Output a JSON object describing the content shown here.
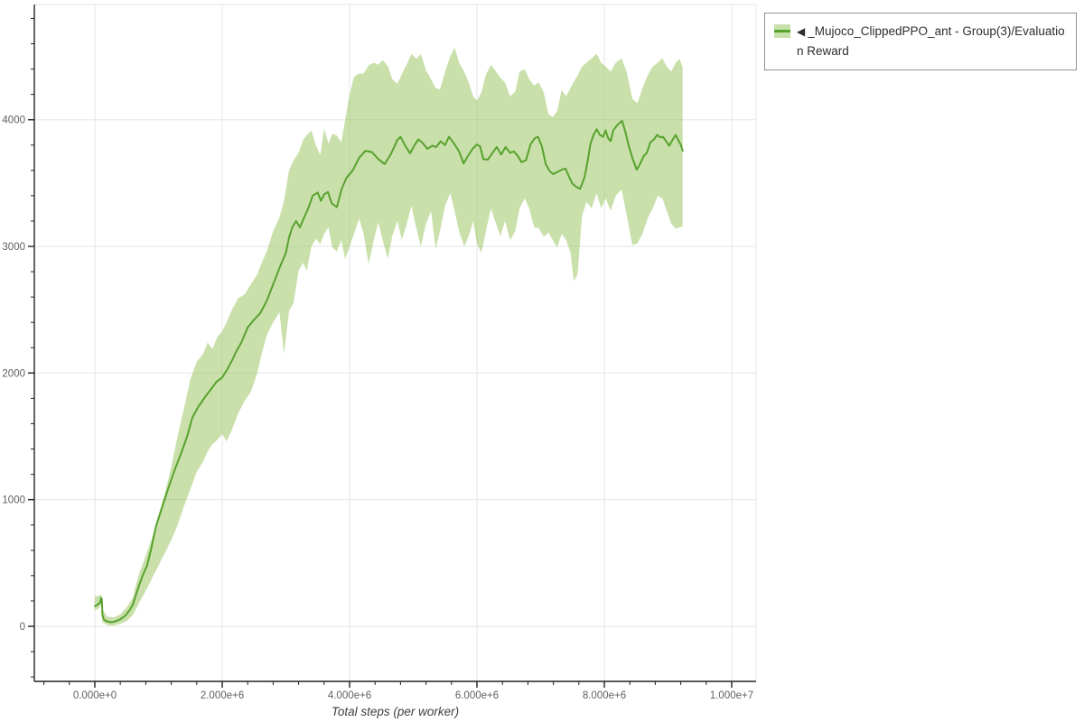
{
  "legend": {
    "marker_icon": "◀",
    "label": "_Mujoco_ClippedPPO_ant - Group(3)/Evaluation Reward",
    "swatch_band_color": "#c8e0aa",
    "swatch_line_color": "#58a22e"
  },
  "colors": {
    "line": "#58a22e",
    "band": "rgba(147,193,87,0.5)",
    "grid": "#e5e5e5",
    "outline": "#e5e5e5",
    "axis": "#222222",
    "tick_label": "#606060",
    "axis_title": "#3f3f3f"
  },
  "chart_data": {
    "type": "line",
    "title": "",
    "xlabel": "Total steps (per worker)",
    "ylabel": "",
    "grid": true,
    "legend_position": "top-right-outside",
    "xlim": [
      -950000,
      10383000
    ],
    "ylim": [
      -435,
      4910
    ],
    "x_ticks": {
      "values": [
        0,
        2000000,
        4000000,
        6000000,
        8000000,
        10000000
      ],
      "labels": [
        "0.000e+0",
        "2.000e+6",
        "4.000e+6",
        "6.000e+6",
        "8.000e+6",
        "1.000e+7"
      ],
      "minor_step": 400000
    },
    "y_ticks": {
      "values": [
        0,
        1000,
        2000,
        3000,
        4000
      ],
      "labels": [
        "0",
        "1000",
        "2000",
        "3000",
        "4000"
      ],
      "minor_step": 200
    },
    "series": [
      {
        "name": "_Mujoco_ClippedPPO_ant - Group(3)/Evaluation Reward",
        "line_color": "#58a22e",
        "band_color": "rgba(147,193,87,0.5)",
        "x": [
          0,
          40000,
          80000,
          100000,
          110000,
          120000,
          140000,
          180000,
          250000,
          320000,
          400000,
          480000,
          550000,
          600000,
          640000,
          700000,
          750000,
          820000,
          880000,
          960000,
          1050000,
          1160000,
          1250000,
          1350000,
          1450000,
          1530000,
          1620000,
          1730000,
          1820000,
          1910000,
          2000000,
          2080000,
          2150000,
          2220000,
          2300000,
          2400000,
          2500000,
          2600000,
          2700000,
          2800000,
          2900000,
          3000000,
          3050000,
          3100000,
          3160000,
          3220000,
          3280000,
          3350000,
          3420000,
          3500000,
          3550000,
          3600000,
          3660000,
          3720000,
          3800000,
          3880000,
          3950000,
          4050000,
          4150000,
          4250000,
          4350000,
          4450000,
          4550000,
          4650000,
          4750000,
          4800000,
          4880000,
          4950000,
          5020000,
          5080000,
          5150000,
          5220000,
          5300000,
          5360000,
          5430000,
          5500000,
          5560000,
          5630000,
          5720000,
          5790000,
          5860000,
          5930000,
          6000000,
          6050000,
          6100000,
          6170000,
          6240000,
          6310000,
          6380000,
          6450000,
          6520000,
          6580000,
          6640000,
          6700000,
          6770000,
          6840000,
          6910000,
          6960000,
          7020000,
          7080000,
          7140000,
          7200000,
          7270000,
          7330000,
          7390000,
          7450000,
          7500000,
          7560000,
          7620000,
          7690000,
          7740000,
          7780000,
          7830000,
          7880000,
          7930000,
          7980000,
          8020000,
          8060000,
          8100000,
          8140000,
          8190000,
          8240000,
          8280000,
          8330000,
          8380000,
          8440000,
          8510000,
          8560000,
          8620000,
          8670000,
          8720000,
          8780000,
          8830000,
          8880000,
          8920000,
          8970000,
          9020000,
          9070000,
          9120000,
          9160000,
          9200000,
          9230000
        ],
        "y": [
          160,
          170,
          185,
          225,
          215,
          90,
          55,
          40,
          32,
          38,
          55,
          85,
          130,
          175,
          240,
          330,
          400,
          480,
          600,
          790,
          930,
          1100,
          1230,
          1360,
          1500,
          1645,
          1730,
          1810,
          1870,
          1930,
          1965,
          2030,
          2095,
          2170,
          2240,
          2360,
          2420,
          2475,
          2570,
          2700,
          2830,
          2950,
          3070,
          3150,
          3200,
          3150,
          3220,
          3300,
          3400,
          3425,
          3360,
          3410,
          3430,
          3340,
          3310,
          3460,
          3540,
          3600,
          3700,
          3755,
          3745,
          3690,
          3650,
          3730,
          3840,
          3865,
          3790,
          3735,
          3800,
          3845,
          3815,
          3770,
          3795,
          3785,
          3830,
          3800,
          3865,
          3820,
          3750,
          3655,
          3715,
          3770,
          3805,
          3790,
          3690,
          3685,
          3735,
          3785,
          3725,
          3785,
          3740,
          3750,
          3715,
          3665,
          3680,
          3805,
          3855,
          3865,
          3790,
          3650,
          3595,
          3570,
          3590,
          3605,
          3615,
          3545,
          3495,
          3470,
          3455,
          3545,
          3680,
          3805,
          3880,
          3925,
          3880,
          3865,
          3915,
          3855,
          3830,
          3915,
          3950,
          3975,
          3990,
          3905,
          3800,
          3700,
          3605,
          3650,
          3715,
          3740,
          3820,
          3845,
          3880,
          3860,
          3865,
          3830,
          3795,
          3840,
          3880,
          3840,
          3805,
          3755
        ],
        "band": {
          "x": [
            0,
            50000,
            100000,
            120000,
            200000,
            300000,
            400000,
            500000,
            600000,
            640000,
            700000,
            800000,
            900000,
            1000000,
            1100000,
            1200000,
            1300000,
            1400000,
            1500000,
            1600000,
            1700000,
            1770000,
            1850000,
            1920000,
            2000000,
            2070000,
            2150000,
            2250000,
            2350000,
            2450000,
            2550000,
            2620000,
            2700000,
            2800000,
            2900000,
            2970000,
            3050000,
            3120000,
            3200000,
            3270000,
            3330000,
            3400000,
            3470000,
            3540000,
            3600000,
            3670000,
            3730000,
            3800000,
            3870000,
            3930000,
            4000000,
            4070000,
            4150000,
            4220000,
            4300000,
            4380000,
            4450000,
            4520000,
            4600000,
            4670000,
            4750000,
            4820000,
            4900000,
            4970000,
            5050000,
            5120000,
            5200000,
            5280000,
            5350000,
            5420000,
            5500000,
            5580000,
            5650000,
            5720000,
            5800000,
            5870000,
            5940000,
            6000000,
            6070000,
            6140000,
            6220000,
            6300000,
            6370000,
            6440000,
            6520000,
            6600000,
            6670000,
            6750000,
            6820000,
            6900000,
            6970000,
            7050000,
            7120000,
            7190000,
            7260000,
            7330000,
            7400000,
            7470000,
            7520000,
            7580000,
            7650000,
            7720000,
            7800000,
            7880000,
            7950000,
            8020000,
            8100000,
            8180000,
            8270000,
            8350000,
            8440000,
            8520000,
            8600000,
            8680000,
            8760000,
            8840000,
            8910000,
            8980000,
            9050000,
            9120000,
            9180000,
            9230000
          ],
          "lower": [
            125,
            135,
            170,
            30,
            10,
            5,
            20,
            40,
            90,
            130,
            190,
            280,
            380,
            480,
            580,
            680,
            800,
            950,
            1080,
            1220,
            1300,
            1380,
            1440,
            1470,
            1520,
            1460,
            1550,
            1680,
            1780,
            1850,
            2000,
            2150,
            2300,
            2400,
            2480,
            2150,
            2490,
            2550,
            2810,
            2870,
            2810,
            3000,
            3060,
            3020,
            3100,
            3150,
            2990,
            2960,
            3050,
            2900,
            3000,
            3100,
            3220,
            3100,
            2860,
            3050,
            3190,
            3050,
            2900,
            3080,
            3200,
            3050,
            3180,
            3320,
            3140,
            3000,
            3180,
            3280,
            2980,
            3120,
            3320,
            3420,
            3280,
            3120,
            3000,
            3080,
            3200,
            3020,
            2950,
            3120,
            3300,
            3180,
            3080,
            3200,
            3050,
            3120,
            3300,
            3380,
            3300,
            3150,
            3145,
            3075,
            3110,
            3050,
            2990,
            3100,
            3050,
            2950,
            2725,
            2780,
            3240,
            3350,
            3300,
            3420,
            3300,
            3380,
            3280,
            3400,
            3450,
            3250,
            3010,
            3025,
            3100,
            3220,
            3300,
            3400,
            3380,
            3280,
            3180,
            3140,
            3150,
            3155
          ],
          "upper": [
            235,
            240,
            250,
            130,
            75,
            70,
            95,
            150,
            230,
            320,
            420,
            560,
            700,
            880,
            1050,
            1260,
            1500,
            1720,
            1950,
            2090,
            2150,
            2240,
            2190,
            2280,
            2330,
            2400,
            2500,
            2590,
            2620,
            2700,
            2780,
            2870,
            2960,
            3120,
            3230,
            3360,
            3600,
            3680,
            3740,
            3840,
            3880,
            3915,
            3800,
            3720,
            3930,
            3810,
            3890,
            3875,
            3820,
            4000,
            4200,
            4340,
            4365,
            4365,
            4430,
            4450,
            4435,
            4470,
            4425,
            4320,
            4285,
            4360,
            4440,
            4520,
            4480,
            4520,
            4390,
            4320,
            4250,
            4240,
            4380,
            4500,
            4570,
            4450,
            4380,
            4295,
            4185,
            4150,
            4215,
            4355,
            4435,
            4380,
            4330,
            4295,
            4185,
            4220,
            4380,
            4400,
            4320,
            4270,
            4295,
            4215,
            4045,
            4020,
            4070,
            4235,
            4185,
            4250,
            4300,
            4350,
            4420,
            4450,
            4485,
            4520,
            4450,
            4420,
            4380,
            4450,
            4485,
            4380,
            4165,
            4130,
            4250,
            4350,
            4420,
            4450,
            4485,
            4420,
            4380,
            4450,
            4480,
            4415
          ]
        }
      }
    ]
  }
}
